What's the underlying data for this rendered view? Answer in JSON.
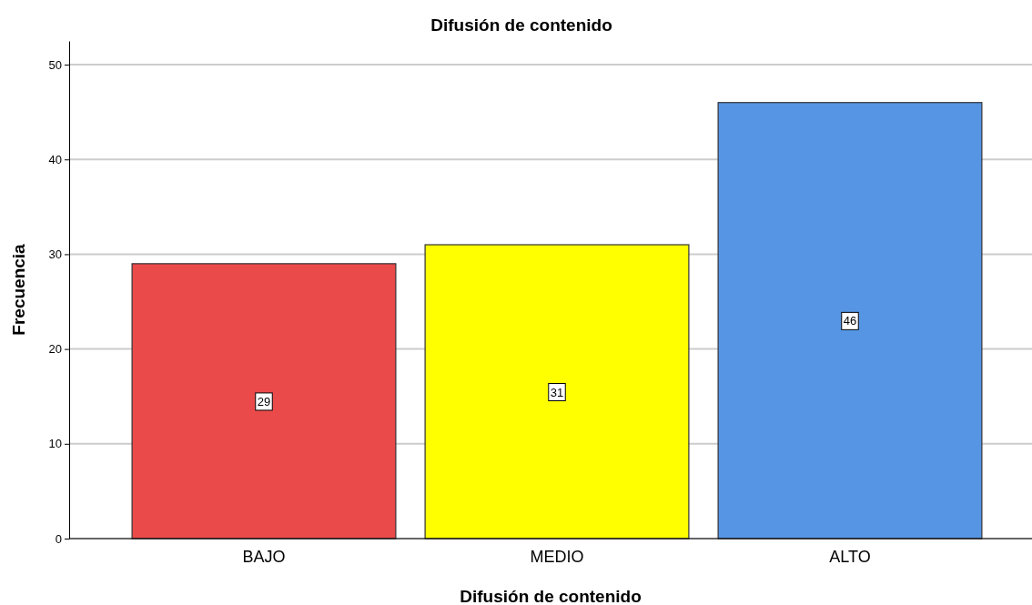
{
  "chart_data": {
    "type": "bar",
    "title": "Difusión de contenido",
    "xlabel": "Difusión de contenido",
    "ylabel": "Frecuencia",
    "categories": [
      "BAJO",
      "MEDIO",
      "ALTO"
    ],
    "values": [
      29,
      31,
      46
    ],
    "colors": [
      "#eb4a4a",
      "#ffff00",
      "#5595e4"
    ],
    "ylim": [
      0,
      52.5
    ],
    "yticks": [
      0,
      10,
      20,
      30,
      40,
      50
    ],
    "grid": "y",
    "data_labels": true
  }
}
